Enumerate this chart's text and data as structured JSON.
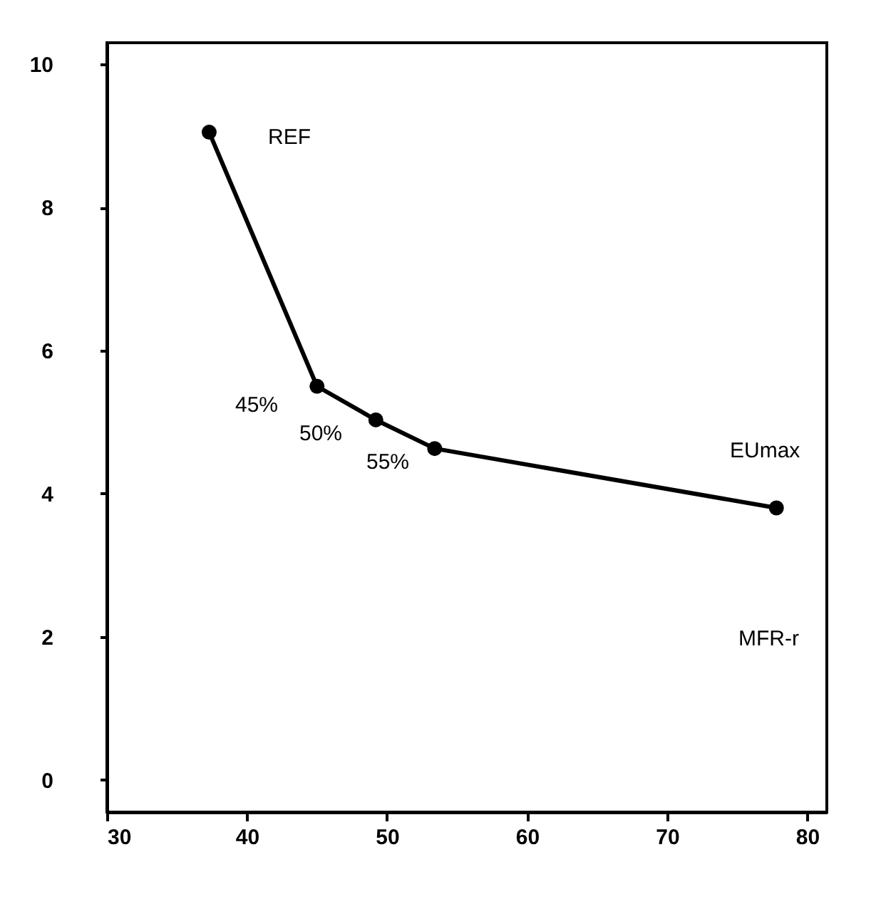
{
  "chart_data": {
    "type": "line",
    "x": [
      37.3,
      45,
      49.2,
      53.4,
      77.8
    ],
    "series": [
      {
        "color": "#000000",
        "values": [
          9.05,
          5.5,
          5.03,
          4.63,
          3.8
        ]
      }
    ],
    "xlim": [
      30,
      81.4
    ],
    "xticks": [
      30,
      40,
      50,
      60,
      70,
      80
    ],
    "ylim": [
      -0.45,
      10.3
    ],
    "yticks": [
      0,
      2,
      4,
      6,
      8,
      10
    ],
    "marker": "circle",
    "line_style": "solid",
    "grid": false,
    "annotations": [
      "REF",
      "45%",
      "50%",
      "55%",
      "EUmax",
      "MFR-r"
    ]
  }
}
